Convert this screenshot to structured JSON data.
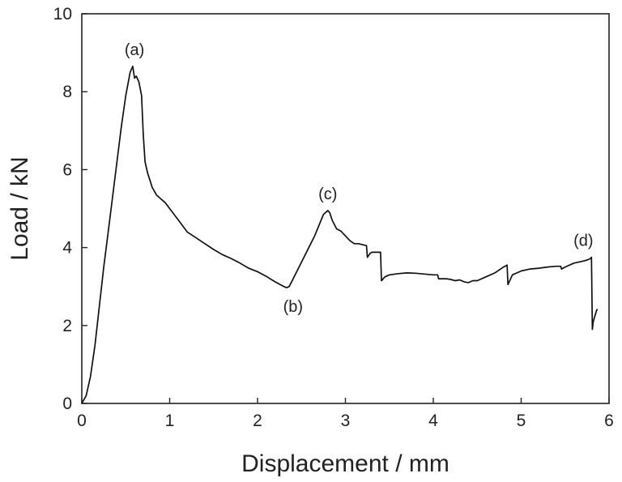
{
  "chart_data": {
    "type": "line",
    "title": "",
    "xlabel": "Displacement / mm",
    "ylabel": "Load / kN",
    "xlim": [
      0,
      6
    ],
    "ylim": [
      0,
      10
    ],
    "xticks": [
      "0",
      "1",
      "2",
      "3",
      "4",
      "5",
      "6"
    ],
    "yticks": [
      "0",
      "2",
      "4",
      "6",
      "8",
      "10"
    ],
    "grid": false,
    "line_color": "#111111",
    "series": [
      {
        "x": [
          0,
          0.05,
          0.1,
          0.15,
          0.2,
          0.25,
          0.3,
          0.35,
          0.4,
          0.45,
          0.5,
          0.55,
          0.58,
          0.6,
          0.62,
          0.65,
          0.68,
          0.7,
          0.72,
          0.75,
          0.78,
          0.8,
          0.85,
          0.9,
          0.95,
          1.0,
          1.1,
          1.2,
          1.3,
          1.4,
          1.5,
          1.6,
          1.7,
          1.8,
          1.9,
          2.0,
          2.1,
          2.2,
          2.3,
          2.33,
          2.36,
          2.45,
          2.55,
          2.65,
          2.75,
          2.8,
          2.82,
          2.85,
          2.9,
          2.95,
          3.0,
          3.05,
          3.1,
          3.15,
          3.2,
          3.24,
          3.25,
          3.28,
          3.3,
          3.35,
          3.4,
          3.41,
          3.45,
          3.5,
          3.6,
          3.7,
          3.8,
          3.9,
          4.0,
          4.05,
          4.06,
          4.15,
          4.2,
          4.25,
          4.3,
          4.35,
          4.4,
          4.45,
          4.5,
          4.6,
          4.7,
          4.8,
          4.84,
          4.85,
          4.9,
          5.0,
          5.1,
          5.2,
          5.3,
          5.4,
          5.45,
          5.46,
          5.5,
          5.6,
          5.7,
          5.75,
          5.79,
          5.8,
          5.81,
          5.82,
          5.84,
          5.86,
          5.87
        ],
        "y": [
          0,
          0.2,
          0.7,
          1.5,
          2.5,
          3.5,
          4.4,
          5.3,
          6.2,
          7.1,
          7.9,
          8.5,
          8.65,
          8.35,
          8.4,
          8.25,
          7.9,
          6.9,
          6.2,
          5.9,
          5.7,
          5.55,
          5.35,
          5.25,
          5.15,
          5.0,
          4.7,
          4.4,
          4.25,
          4.1,
          3.95,
          3.82,
          3.72,
          3.6,
          3.47,
          3.38,
          3.26,
          3.12,
          3.0,
          2.97,
          3.0,
          3.4,
          3.85,
          4.3,
          4.85,
          4.95,
          4.9,
          4.7,
          4.48,
          4.42,
          4.3,
          4.18,
          4.1,
          4.1,
          4.07,
          4.05,
          3.75,
          3.85,
          3.88,
          3.88,
          3.88,
          3.15,
          3.25,
          3.3,
          3.33,
          3.35,
          3.34,
          3.32,
          3.3,
          3.3,
          3.2,
          3.2,
          3.18,
          3.15,
          3.17,
          3.12,
          3.1,
          3.15,
          3.15,
          3.25,
          3.35,
          3.5,
          3.55,
          3.05,
          3.3,
          3.4,
          3.45,
          3.47,
          3.5,
          3.52,
          3.52,
          3.45,
          3.5,
          3.6,
          3.65,
          3.68,
          3.72,
          3.75,
          1.9,
          2.1,
          2.25,
          2.4,
          2.42
        ]
      }
    ],
    "annotations": [
      {
        "label": "(a)",
        "x": 0.6,
        "y": 8.65
      },
      {
        "label": "(b)",
        "x": 2.33,
        "y": 2.97
      },
      {
        "label": "(c)",
        "x": 2.8,
        "y": 4.95
      },
      {
        "label": "(d)",
        "x": 5.8,
        "y": 3.75
      }
    ]
  }
}
